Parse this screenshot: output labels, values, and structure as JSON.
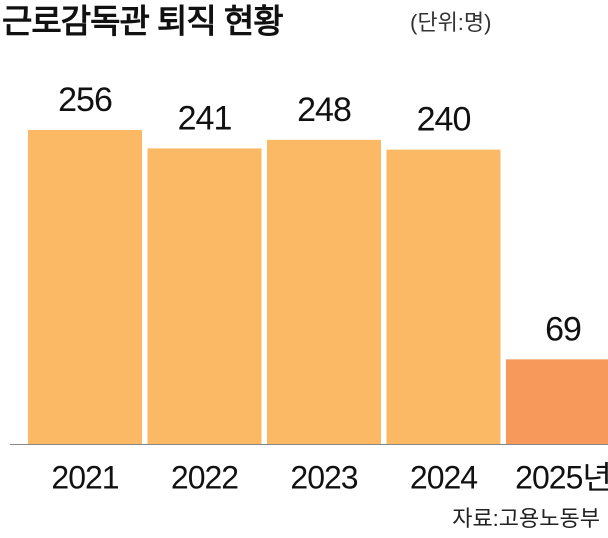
{
  "chart_data": {
    "type": "bar",
    "title": "근로감독관 퇴직 현황",
    "subtitle": "(단위:명)",
    "categories": [
      "2021",
      "2022",
      "2023",
      "2024",
      "2025년"
    ],
    "values": [
      256,
      241,
      248,
      240,
      69
    ],
    "colors": [
      "#fbb865",
      "#fbb865",
      "#fbb865",
      "#fbb865",
      "#f6995a"
    ],
    "source": "자료:고용노동부"
  }
}
